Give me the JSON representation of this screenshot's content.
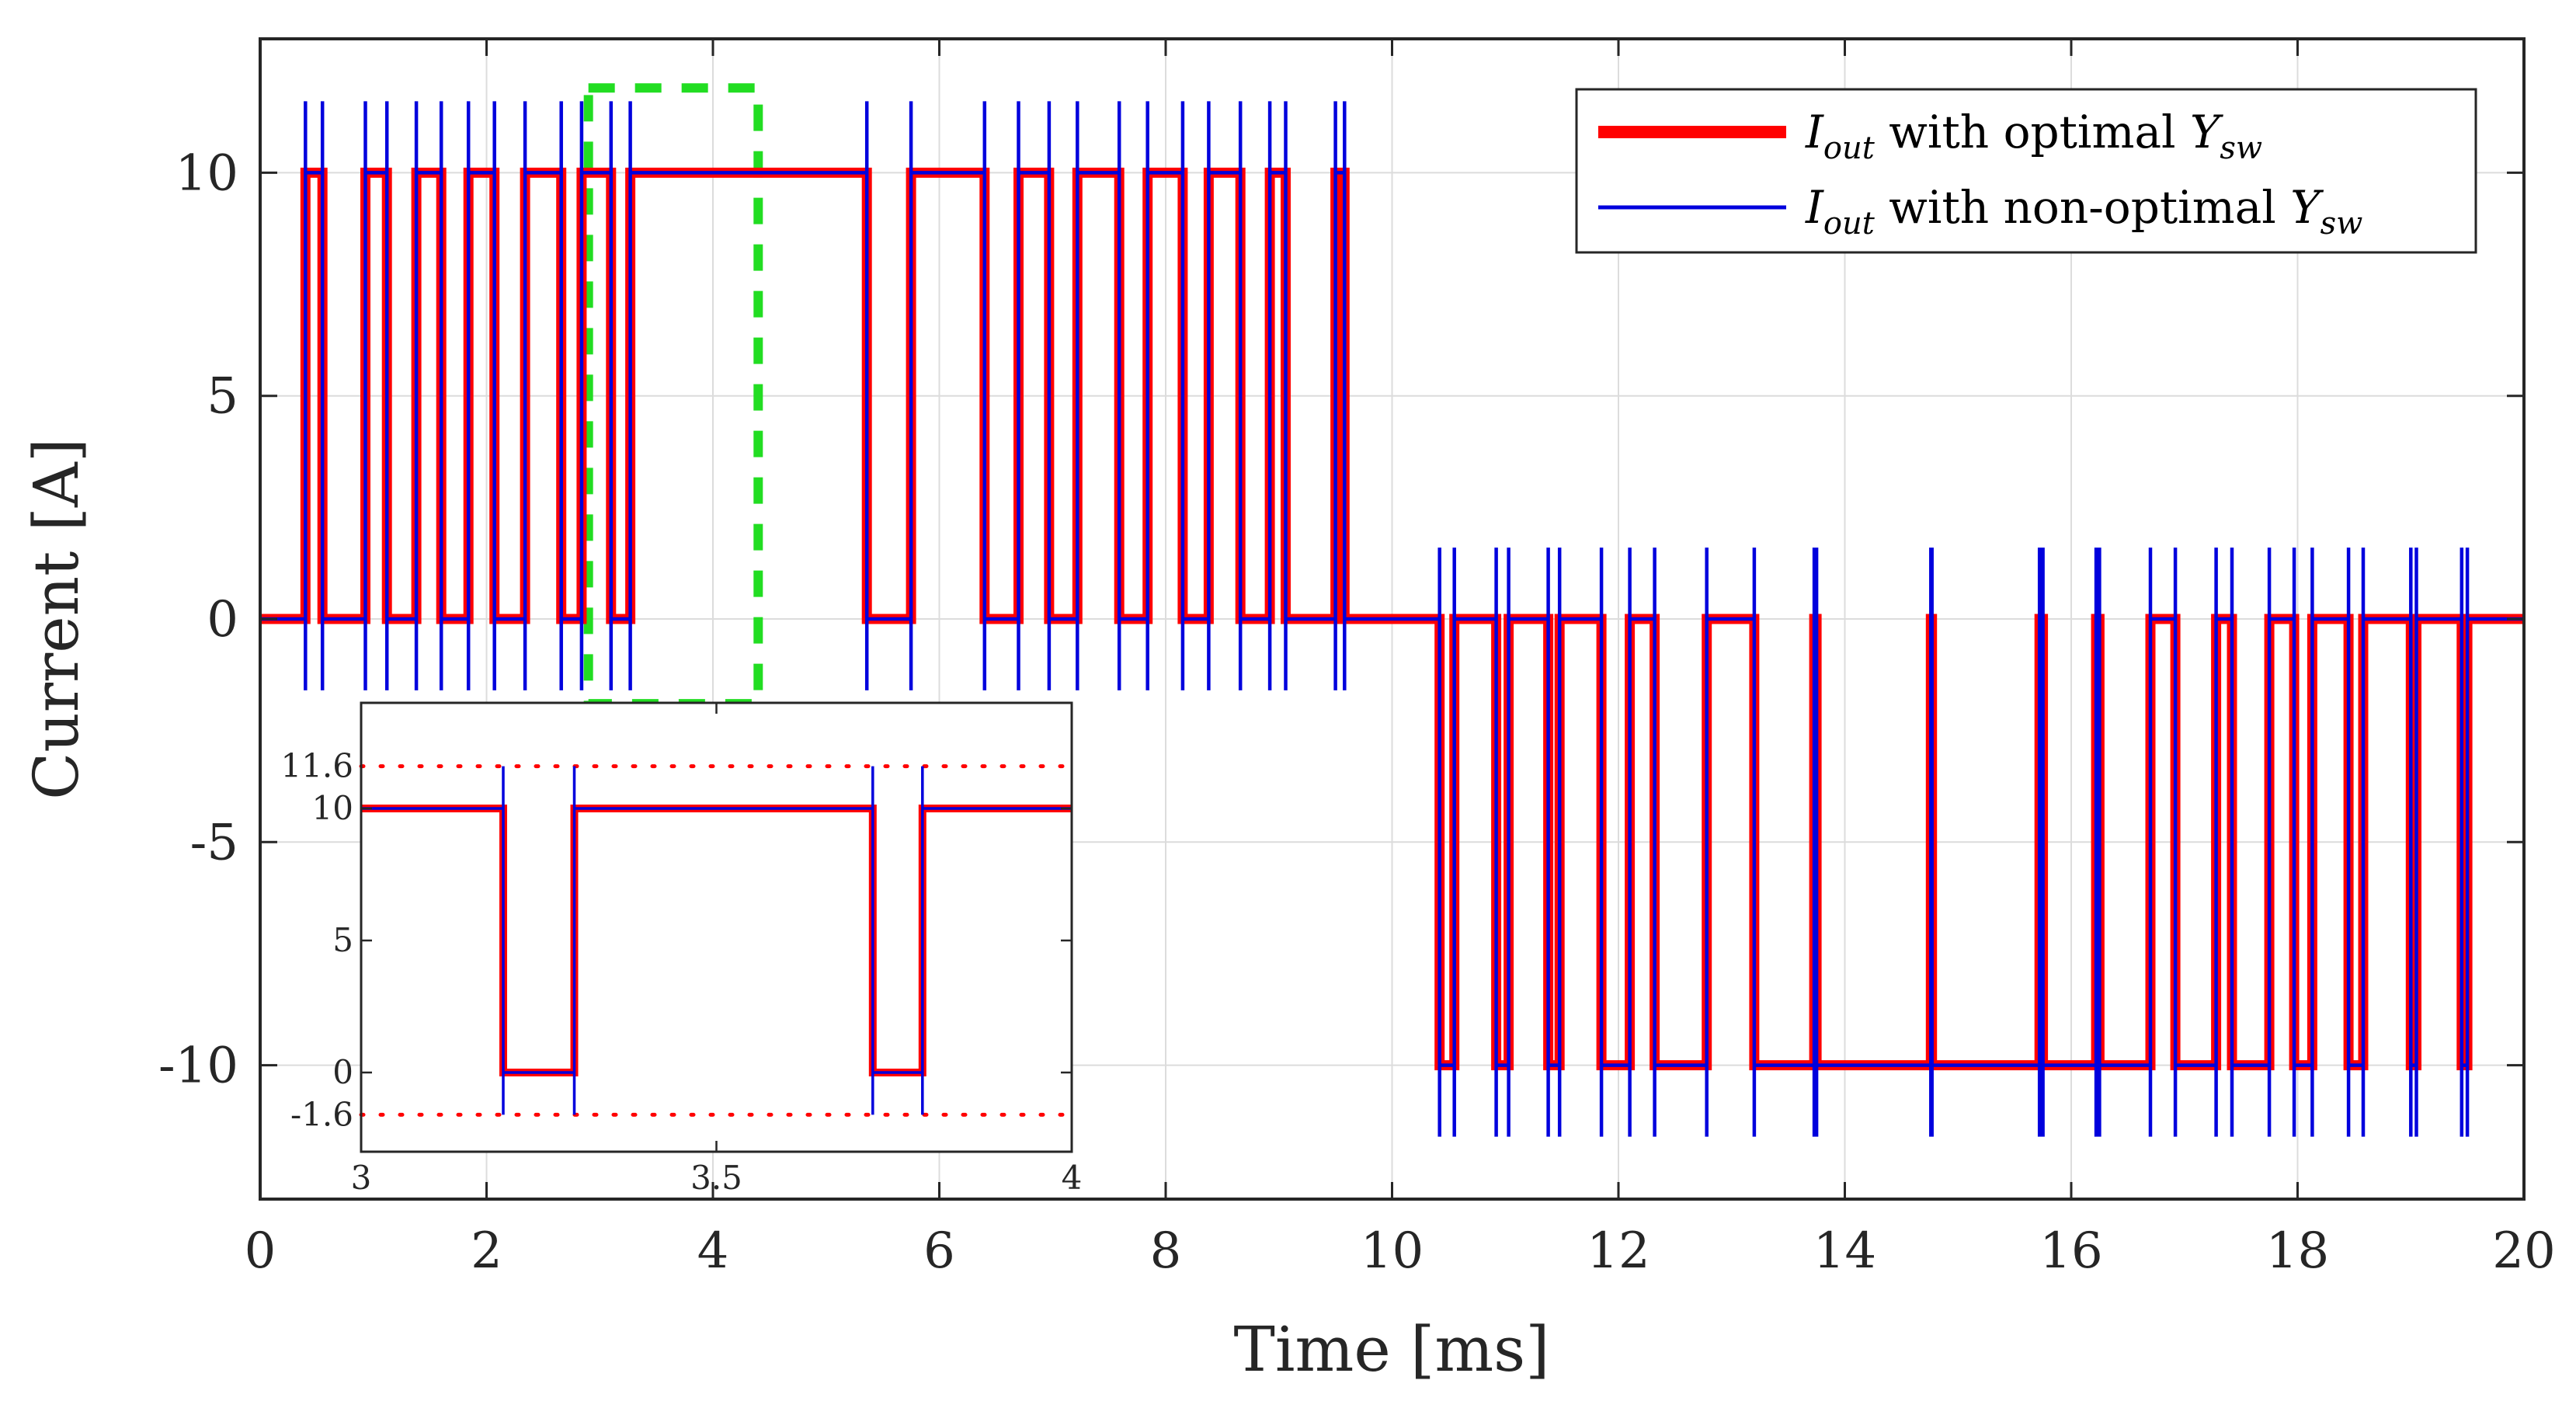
{
  "chart_data": {
    "type": "line",
    "xlabel": "Time [ms]",
    "ylabel": "Current [A]",
    "xlim": [
      0,
      20
    ],
    "ylim": [
      -13,
      13
    ],
    "xticks": [
      0,
      2,
      4,
      6,
      8,
      10,
      12,
      14,
      16,
      18,
      20
    ],
    "yticks": [
      -10,
      -5,
      0,
      5,
      10
    ],
    "ytick_labels": [
      "-10",
      "-5",
      "0",
      "5",
      "10"
    ],
    "grid": true,
    "legend_position": "top-right",
    "overshoot": 1.6,
    "series": [
      {
        "name": "optimal",
        "label_base": "I",
        "label_sub": "out",
        "label_mid": " with optimal ",
        "label_var": "Y",
        "label_var_sub": "sw",
        "color": "#ff0000"
      },
      {
        "name": "non-optimal",
        "label_base": "I",
        "label_sub": "out",
        "label_mid": " with non-optimal ",
        "label_var": "Y",
        "label_var_sub": "sw",
        "color": "#0000dd"
      }
    ],
    "positive_pulses": [
      [
        0.4,
        0.55
      ],
      [
        0.93,
        1.12
      ],
      [
        1.38,
        1.6
      ],
      [
        1.84,
        2.07
      ],
      [
        2.34,
        2.66
      ],
      [
        2.84,
        3.1
      ],
      [
        3.27,
        5.36
      ],
      [
        5.75,
        6.4
      ],
      [
        6.7,
        6.97
      ],
      [
        7.22,
        7.59
      ],
      [
        7.84,
        8.15
      ],
      [
        8.38,
        8.66
      ],
      [
        8.92,
        9.06
      ],
      [
        9.5,
        9.58
      ]
    ],
    "negative_pulses": [
      [
        10.42,
        10.55
      ],
      [
        10.92,
        11.03
      ],
      [
        11.38,
        11.48
      ],
      [
        11.85,
        12.1
      ],
      [
        12.32,
        12.78
      ],
      [
        13.2,
        13.73
      ],
      [
        13.75,
        14.76
      ],
      [
        14.77,
        15.72
      ],
      [
        15.75,
        16.22
      ],
      [
        16.25,
        16.7
      ],
      [
        16.92,
        17.28
      ],
      [
        17.42,
        17.75
      ],
      [
        17.97,
        18.13
      ],
      [
        18.45,
        18.58
      ],
      [
        19.0,
        19.05
      ],
      [
        19.45,
        19.5
      ]
    ],
    "highlight_box": {
      "x": [
        2.9,
        4.4
      ],
      "y": [
        -1.9,
        11.9
      ],
      "color": "#22dd22"
    },
    "inset": {
      "xlim": [
        3,
        4
      ],
      "ylim": [
        -3,
        14
      ],
      "xticks": [
        3,
        3.5,
        4
      ],
      "xtick_labels": [
        "3",
        "3.5",
        "4"
      ],
      "yticks": [
        0,
        5,
        10
      ],
      "ytick_labels": [
        "0",
        "5",
        "10"
      ],
      "ref_lines": [
        11.6,
        -1.6
      ],
      "ref_labels": [
        "11.6",
        "-1.6"
      ],
      "ref_color": "#ff0000",
      "pulses_low": [
        [
          3.2,
          3.3
        ],
        [
          3.72,
          3.79
        ]
      ]
    }
  }
}
